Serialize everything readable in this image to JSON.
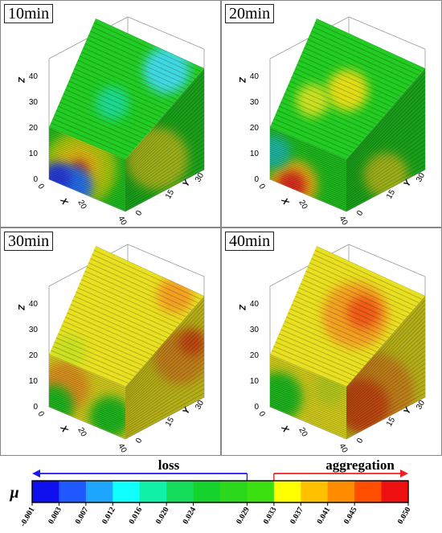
{
  "panels": [
    {
      "title": "10min",
      "axis_labels": {
        "x": "X",
        "y": "Y",
        "z": "Z"
      },
      "x_ticks": [
        "0",
        "20",
        "40"
      ],
      "y_ticks": [
        "0",
        "15",
        "30"
      ],
      "z_ticks": [
        "0",
        "10",
        "20",
        "30",
        "40"
      ],
      "base_color": "#22cc22",
      "patches": [
        {
          "face": "front",
          "u": 0.4,
          "v": 0.45,
          "r": 0.45,
          "color": "#b8dd10"
        },
        {
          "face": "front",
          "u": 0.38,
          "v": 0.45,
          "r": 0.28,
          "color": "#f2d018"
        },
        {
          "face": "front",
          "u": 0.4,
          "v": 0.45,
          "r": 0.1,
          "color": "#ee3020"
        },
        {
          "face": "front",
          "u": 0.3,
          "v": 0.05,
          "r": 0.25,
          "color": "#2a7bff"
        },
        {
          "face": "front",
          "u": 0.1,
          "v": 0.1,
          "r": 0.18,
          "color": "#2a40ee"
        },
        {
          "face": "side",
          "u": 0.4,
          "v": 0.5,
          "r": 0.35,
          "color": "#c9e020"
        },
        {
          "face": "top",
          "u": 0.75,
          "v": 0.85,
          "r": 0.28,
          "color": "#3fd8e0"
        },
        {
          "face": "top",
          "u": 0.5,
          "v": 0.4,
          "r": 0.2,
          "color": "#1fd78c"
        }
      ]
    },
    {
      "title": "20min",
      "axis_labels": {
        "x": "X",
        "y": "Y",
        "z": "Z"
      },
      "x_ticks": [
        "0",
        "20",
        "40"
      ],
      "y_ticks": [
        "0",
        "15",
        "30"
      ],
      "z_ticks": [
        "0",
        "10",
        "20",
        "30",
        "40"
      ],
      "base_color": "#22cc22",
      "patches": [
        {
          "face": "front",
          "u": 0.3,
          "v": 0.08,
          "r": 0.3,
          "color": "#f6c818"
        },
        {
          "face": "front",
          "u": 0.28,
          "v": 0.05,
          "r": 0.18,
          "color": "#ee3020"
        },
        {
          "face": "front",
          "u": 0.05,
          "v": 0.55,
          "r": 0.2,
          "color": "#22c8b0"
        },
        {
          "face": "top",
          "u": 0.55,
          "v": 0.55,
          "r": 0.25,
          "color": "#e0dd18"
        },
        {
          "face": "top",
          "u": 0.3,
          "v": 0.35,
          "r": 0.2,
          "color": "#c9e020"
        },
        {
          "face": "side",
          "u": 0.5,
          "v": 0.2,
          "r": 0.25,
          "color": "#c9e020"
        }
      ]
    },
    {
      "title": "30min",
      "axis_labels": {
        "x": "X",
        "y": "Y",
        "z": "Z"
      },
      "x_ticks": [
        "0",
        "20",
        "40"
      ],
      "y_ticks": [
        "0",
        "15",
        "30"
      ],
      "z_ticks": [
        "0",
        "10",
        "20",
        "30",
        "40"
      ],
      "base_color": "#e8e020",
      "patches": [
        {
          "face": "front",
          "u": 0.2,
          "v": 0.5,
          "r": 0.3,
          "color": "#f2a020"
        },
        {
          "face": "front",
          "u": 0.05,
          "v": 0.05,
          "r": 0.25,
          "color": "#22c822"
        },
        {
          "face": "front",
          "u": 0.8,
          "v": 0.3,
          "r": 0.25,
          "color": "#22c822"
        },
        {
          "face": "side",
          "u": 0.7,
          "v": 0.6,
          "r": 0.3,
          "color": "#f2a020"
        },
        {
          "face": "side",
          "u": 0.85,
          "v": 0.65,
          "r": 0.15,
          "color": "#ee5a18"
        },
        {
          "face": "top",
          "u": 0.8,
          "v": 0.9,
          "r": 0.22,
          "color": "#f2a020"
        },
        {
          "face": "top",
          "u": 0.2,
          "v": 0.1,
          "r": 0.2,
          "color": "#c9e020"
        }
      ]
    },
    {
      "title": "40min",
      "axis_labels": {
        "x": "X",
        "y": "Y",
        "z": "Z"
      },
      "x_ticks": [
        "0",
        "20",
        "40"
      ],
      "y_ticks": [
        "0",
        "15",
        "30"
      ],
      "z_ticks": [
        "0",
        "10",
        "20",
        "30",
        "40"
      ],
      "base_color": "#e8e020",
      "patches": [
        {
          "face": "side",
          "u": 0.35,
          "v": 0.45,
          "r": 0.45,
          "color": "#f2a020"
        },
        {
          "face": "side",
          "u": 0.2,
          "v": 0.4,
          "r": 0.3,
          "color": "#ee5a18"
        },
        {
          "face": "top",
          "u": 0.6,
          "v": 0.6,
          "r": 0.4,
          "color": "#f2a020"
        },
        {
          "face": "top",
          "u": 0.65,
          "v": 0.65,
          "r": 0.2,
          "color": "#ee5a18"
        },
        {
          "face": "front",
          "u": 0.1,
          "v": 0.25,
          "r": 0.3,
          "color": "#22c822"
        },
        {
          "face": "front",
          "u": 0.8,
          "v": 0.85,
          "r": 0.2,
          "color": "#c9e020"
        }
      ]
    }
  ],
  "legend": {
    "symbol": "μ",
    "loss_label": "loss",
    "aggregation_label": "aggregation",
    "loss_color": "#1a1aee",
    "aggregation_color": "#ee2020",
    "colors": [
      "#1010ee",
      "#1f58ff",
      "#1ea6ff",
      "#10ffff",
      "#10f0a8",
      "#16dc5c",
      "#16d22c",
      "#2cd81c",
      "#3ce010",
      "#ffff00",
      "#ffc000",
      "#ff8c00",
      "#ff4e00",
      "#ee1010"
    ],
    "ticks": [
      "-0.001",
      "0.003",
      "0.007",
      "0.012",
      "0.016",
      "0.020",
      "0.024",
      "0.029",
      "0.033",
      "0.037",
      "0.041",
      "0.045",
      "0.050"
    ],
    "tick_segments": [
      0,
      1,
      2,
      3,
      4,
      5,
      6,
      8,
      9,
      10,
      11,
      12,
      14
    ]
  }
}
